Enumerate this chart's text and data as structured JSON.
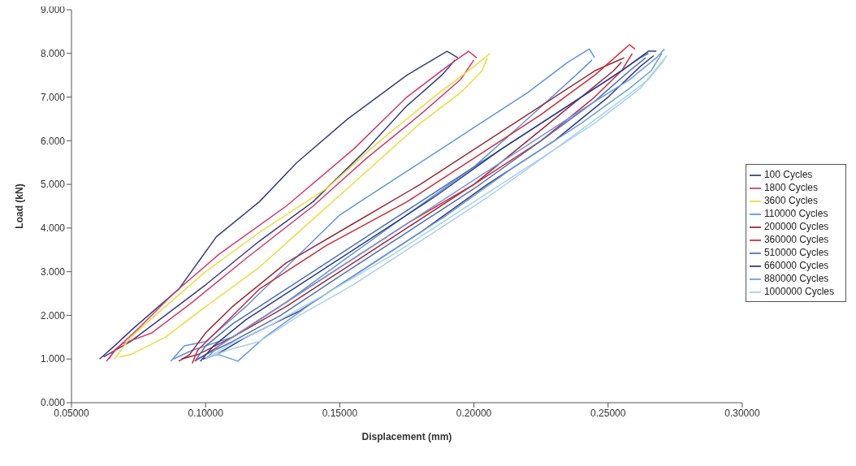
{
  "chart_data": {
    "type": "line",
    "xlabel": "Displacement (mm)",
    "ylabel": "Load (kN)",
    "xlim": [
      0.05,
      0.3
    ],
    "xticks": [
      {
        "value": 0.05,
        "label": "0.05000"
      },
      {
        "value": 0.1,
        "label": "0.10000"
      },
      {
        "value": 0.15,
        "label": "0.15000"
      },
      {
        "value": 0.2,
        "label": "0.20000"
      },
      {
        "value": 0.25,
        "label": "0.25000"
      },
      {
        "value": 0.3,
        "label": "0.30000"
      }
    ],
    "ylim": [
      0,
      9
    ],
    "yticks": [
      {
        "value": 0,
        "label": "0.000"
      },
      {
        "value": 1,
        "label": "1.000"
      },
      {
        "value": 2,
        "label": "2.000"
      },
      {
        "value": 3,
        "label": "3.000"
      },
      {
        "value": 4,
        "label": "4.000"
      },
      {
        "value": 5,
        "label": "5.000"
      },
      {
        "value": 6,
        "label": "6.000"
      },
      {
        "value": 7,
        "label": "7.000"
      },
      {
        "value": 8,
        "label": "8.000"
      },
      {
        "value": 9,
        "label": "9.000"
      }
    ],
    "grid": false,
    "legend": "right",
    "marker": "none",
    "line_style": "solid",
    "series": [
      {
        "name": "100 Cycles",
        "color": "#3a3f7a",
        "x": [
          0.0605,
          0.066,
          0.073,
          0.09,
          0.104,
          0.12,
          0.134,
          0.153,
          0.175,
          0.19,
          0.194
        ],
        "values": [
          1.0,
          1.3,
          1.7,
          2.6,
          3.8,
          4.6,
          5.5,
          6.5,
          7.5,
          8.05,
          7.9
        ]
      },
      {
        "color": "#3a3f7a",
        "x": [
          0.062,
          0.072,
          0.085,
          0.1,
          0.12,
          0.14,
          0.16,
          0.175,
          0.188,
          0.193
        ],
        "values": [
          1.05,
          1.4,
          2.0,
          2.7,
          3.7,
          4.6,
          5.8,
          6.8,
          7.5,
          7.85
        ]
      },
      {
        "name": "1800 Cycles",
        "color": "#d43a6a",
        "x": [
          0.063,
          0.067,
          0.075,
          0.088,
          0.105,
          0.13,
          0.155,
          0.175,
          0.19,
          0.198,
          0.201
        ],
        "values": [
          0.95,
          1.25,
          1.7,
          2.5,
          3.4,
          4.5,
          5.8,
          7.0,
          7.7,
          8.05,
          7.9
        ]
      },
      {
        "color": "#d43a6a",
        "x": [
          0.064,
          0.066,
          0.069,
          0.08,
          0.095,
          0.115,
          0.14,
          0.16,
          0.18,
          0.195,
          0.2
        ],
        "values": [
          1.0,
          1.2,
          1.35,
          1.6,
          2.3,
          3.3,
          4.5,
          5.6,
          6.6,
          7.4,
          7.85
        ]
      },
      {
        "name": "3600 Cycles",
        "color": "#ecdc3c",
        "x": [
          0.066,
          0.072,
          0.085,
          0.1,
          0.12,
          0.145,
          0.165,
          0.185,
          0.2,
          0.206
        ],
        "values": [
          1.0,
          1.5,
          2.2,
          3.0,
          3.9,
          4.9,
          6.0,
          7.0,
          7.7,
          8.0
        ]
      },
      {
        "color": "#ecdc3c",
        "x": [
          0.068,
          0.072,
          0.085,
          0.1,
          0.12,
          0.14,
          0.16,
          0.18,
          0.195,
          0.203,
          0.205
        ],
        "values": [
          1.05,
          1.1,
          1.5,
          2.2,
          3.1,
          4.2,
          5.3,
          6.4,
          7.1,
          7.6,
          7.9
        ]
      },
      {
        "name": "110000 Cycles",
        "color": "#5f95e0",
        "x": [
          0.087,
          0.092,
          0.1,
          0.115,
          0.13,
          0.15,
          0.175,
          0.2,
          0.22,
          0.235,
          0.243,
          0.245
        ],
        "values": [
          0.95,
          1.3,
          1.4,
          2.2,
          3.1,
          4.3,
          5.3,
          6.3,
          7.1,
          7.8,
          8.1,
          7.9
        ]
      },
      {
        "color": "#5f95e0",
        "x": [
          0.088,
          0.095,
          0.11,
          0.13,
          0.15,
          0.175,
          0.2,
          0.22,
          0.238,
          0.244
        ],
        "values": [
          1.0,
          1.2,
          1.5,
          2.3,
          3.2,
          4.3,
          5.4,
          6.5,
          7.5,
          7.85
        ]
      },
      {
        "name": "200000 Cycles",
        "color": "#9a2a3a",
        "x": [
          0.09,
          0.094,
          0.1,
          0.11,
          0.13,
          0.155,
          0.18,
          0.205,
          0.225,
          0.245,
          0.256
        ],
        "values": [
          0.95,
          1.1,
          1.6,
          2.2,
          3.2,
          4.1,
          5.0,
          6.0,
          6.8,
          7.6,
          7.9
        ]
      },
      {
        "color": "#9a2a3a",
        "x": [
          0.091,
          0.097,
          0.11,
          0.13,
          0.15,
          0.175,
          0.2,
          0.22,
          0.24,
          0.252,
          0.255
        ],
        "values": [
          1.0,
          1.1,
          1.5,
          2.2,
          3.0,
          4.0,
          5.0,
          6.0,
          7.0,
          7.6,
          7.8
        ]
      },
      {
        "name": "360000 Cycles",
        "color": "#d02a3a",
        "x": [
          0.095,
          0.097,
          0.102,
          0.12,
          0.145,
          0.175,
          0.2,
          0.225,
          0.245,
          0.258,
          0.26
        ],
        "values": [
          0.9,
          1.2,
          1.5,
          2.6,
          3.6,
          4.6,
          5.6,
          6.6,
          7.5,
          8.2,
          8.1
        ]
      },
      {
        "color": "#d02a3a",
        "x": [
          0.096,
          0.105,
          0.125,
          0.15,
          0.175,
          0.2,
          0.225,
          0.245,
          0.255,
          0.259
        ],
        "values": [
          0.95,
          1.3,
          2.1,
          3.1,
          4.1,
          5.0,
          6.0,
          7.0,
          7.6,
          8.0
        ]
      },
      {
        "name": "510000 Cycles",
        "color": "#4f6fb8",
        "x": [
          0.096,
          0.1,
          0.11,
          0.13,
          0.155,
          0.18,
          0.205,
          0.23,
          0.25,
          0.262,
          0.265
        ],
        "values": [
          0.95,
          1.3,
          1.8,
          2.6,
          3.6,
          4.6,
          5.6,
          6.6,
          7.4,
          7.9,
          8.0
        ]
      },
      {
        "color": "#4f6fb8",
        "x": [
          0.097,
          0.1,
          0.11,
          0.128,
          0.15,
          0.175,
          0.2,
          0.225,
          0.245,
          0.258,
          0.264
        ],
        "values": [
          1.0,
          1.1,
          1.4,
          2.0,
          2.9,
          3.9,
          4.9,
          6.0,
          6.9,
          7.6,
          7.9
        ]
      },
      {
        "name": "660000 Cycles",
        "color": "#2f3a8c",
        "x": [
          0.098,
          0.103,
          0.115,
          0.135,
          0.16,
          0.185,
          0.21,
          0.235,
          0.255,
          0.265,
          0.268
        ],
        "values": [
          0.95,
          1.3,
          1.9,
          2.7,
          3.7,
          4.7,
          5.8,
          6.8,
          7.6,
          8.05,
          8.05
        ]
      },
      {
        "color": "#2f3a8c",
        "x": [
          0.099,
          0.104,
          0.115,
          0.135,
          0.155,
          0.18,
          0.205,
          0.23,
          0.25,
          0.262,
          0.267
        ],
        "values": [
          1.0,
          1.1,
          1.5,
          2.1,
          2.9,
          3.9,
          5.0,
          6.0,
          7.0,
          7.7,
          7.95
        ]
      },
      {
        "name": "880000 Cycles",
        "color": "#6f9be0",
        "x": [
          0.1,
          0.105,
          0.12,
          0.14,
          0.165,
          0.19,
          0.215,
          0.24,
          0.258,
          0.268,
          0.271
        ],
        "values": [
          1.0,
          1.3,
          1.9,
          2.7,
          3.7,
          4.7,
          5.7,
          6.7,
          7.4,
          7.9,
          8.1
        ]
      },
      {
        "color": "#6f9be0",
        "x": [
          0.101,
          0.105,
          0.112,
          0.122,
          0.14,
          0.165,
          0.19,
          0.215,
          0.24,
          0.258,
          0.266,
          0.27
        ],
        "values": [
          1.05,
          1.1,
          0.95,
          1.5,
          2.3,
          3.3,
          4.3,
          5.4,
          6.4,
          7.2,
          7.6,
          8.0
        ]
      },
      {
        "name": "1000000 Cycles",
        "color": "#a8d0f0",
        "x": [
          0.1,
          0.108,
          0.125,
          0.145,
          0.17,
          0.195,
          0.22,
          0.245,
          0.262,
          0.27,
          0.272
        ],
        "values": [
          1.0,
          1.3,
          1.8,
          2.5,
          3.4,
          4.4,
          5.4,
          6.4,
          7.2,
          7.8,
          7.95
        ]
      },
      {
        "color": "#a8d0f0",
        "x": [
          0.102,
          0.108,
          0.12,
          0.135,
          0.155,
          0.18,
          0.205,
          0.23,
          0.25,
          0.265,
          0.271
        ],
        "values": [
          1.05,
          1.2,
          1.4,
          2.0,
          2.7,
          3.7,
          4.7,
          5.8,
          6.7,
          7.4,
          7.85
        ]
      }
    ]
  }
}
